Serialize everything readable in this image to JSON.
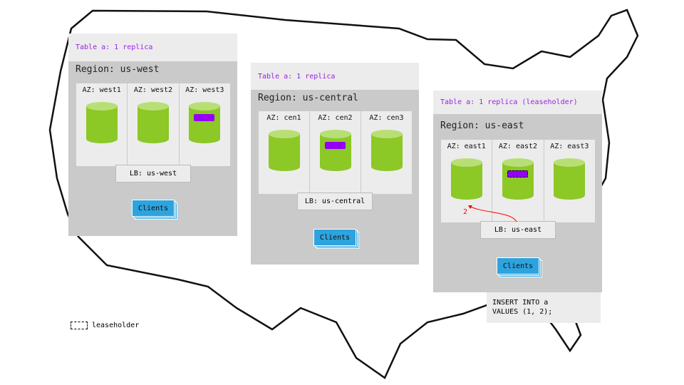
{
  "regions": [
    {
      "header": "Table a: 1 replica",
      "region": "Region: us-west",
      "azs": [
        "AZ: west1",
        "AZ: west2",
        "AZ: west3"
      ],
      "replica_az": 2,
      "lb": "LB: us-west",
      "clients": "Clients"
    },
    {
      "header": "Table a: 1 replica",
      "region": "Region: us-central",
      "azs": [
        "AZ: cen1",
        "AZ: cen2",
        "AZ: cen3"
      ],
      "replica_az": 1,
      "lb": "LB: us-central",
      "clients": "Clients"
    },
    {
      "header": "Table a: 1 replica (leaseholder)",
      "region": "Region: us-east",
      "azs": [
        "AZ: east1",
        "AZ: east2",
        "AZ: east3"
      ],
      "replica_az": 1,
      "lb": "LB: us-east",
      "clients": "Clients",
      "arrow_label": "2"
    }
  ],
  "sql": "INSERT INTO a\nVALUES (1, 2);",
  "legend": {
    "label": "leaseholder"
  },
  "colors": {
    "replica": "#9400f5",
    "node": "#8cc826",
    "clients": "#2ea3dd",
    "arrow": "#ff0000"
  }
}
